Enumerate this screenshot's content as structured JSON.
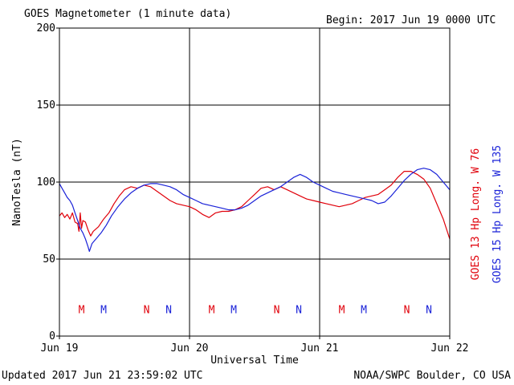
{
  "header": {
    "title": "GOES Magnetometer (1 minute data)",
    "begin": "Begin:  2017 Jun 19 0000 UTC"
  },
  "footer": {
    "updated": "Updated 2017 Jun 21 23:59:02 UTC",
    "credit": "NOAA/SWPC Boulder, CO USA"
  },
  "colors": {
    "goes13": "#e0000a",
    "goes15": "#1a22d8",
    "axis": "#000000"
  },
  "chart_data": {
    "type": "line",
    "title": "GOES Magnetometer (1 minute data)",
    "xlabel": "Universal Time",
    "ylabel": "NanoTesla (nT)",
    "xlim": [
      0,
      3
    ],
    "ylim": [
      0,
      200
    ],
    "x_ticks": [
      {
        "x": 0,
        "label": "Jun 19"
      },
      {
        "x": 1,
        "label": "Jun 20"
      },
      {
        "x": 2,
        "label": "Jun 21"
      },
      {
        "x": 3,
        "label": "Jun 22"
      }
    ],
    "y_ticks": [
      0,
      50,
      100,
      150,
      200
    ],
    "grid": true,
    "legend_placement": "right-vertical",
    "series": [
      {
        "name": "GOES 13 Hp  Long. W 76",
        "color": "#e0000a",
        "points": [
          [
            0.0,
            78
          ],
          [
            0.02,
            80
          ],
          [
            0.04,
            77
          ],
          [
            0.06,
            79
          ],
          [
            0.08,
            76
          ],
          [
            0.1,
            80
          ],
          [
            0.12,
            74
          ],
          [
            0.14,
            73
          ],
          [
            0.15,
            68
          ],
          [
            0.16,
            80
          ],
          [
            0.17,
            70
          ],
          [
            0.18,
            75
          ],
          [
            0.2,
            74
          ],
          [
            0.22,
            69
          ],
          [
            0.24,
            65
          ],
          [
            0.26,
            68
          ],
          [
            0.3,
            71
          ],
          [
            0.34,
            76
          ],
          [
            0.38,
            80
          ],
          [
            0.42,
            86
          ],
          [
            0.46,
            91
          ],
          [
            0.5,
            95
          ],
          [
            0.55,
            97
          ],
          [
            0.6,
            96
          ],
          [
            0.65,
            98
          ],
          [
            0.7,
            97
          ],
          [
            0.75,
            94
          ],
          [
            0.8,
            91
          ],
          [
            0.85,
            88
          ],
          [
            0.9,
            86
          ],
          [
            0.95,
            85
          ],
          [
            1.0,
            84
          ],
          [
            1.05,
            82
          ],
          [
            1.1,
            79
          ],
          [
            1.15,
            77
          ],
          [
            1.2,
            80
          ],
          [
            1.25,
            81
          ],
          [
            1.3,
            81
          ],
          [
            1.35,
            82
          ],
          [
            1.4,
            84
          ],
          [
            1.45,
            88
          ],
          [
            1.5,
            92
          ],
          [
            1.55,
            96
          ],
          [
            1.6,
            97
          ],
          [
            1.65,
            95
          ],
          [
            1.7,
            97
          ],
          [
            1.75,
            95
          ],
          [
            1.8,
            93
          ],
          [
            1.85,
            91
          ],
          [
            1.9,
            89
          ],
          [
            1.95,
            88
          ],
          [
            2.0,
            87
          ],
          [
            2.05,
            86
          ],
          [
            2.1,
            85
          ],
          [
            2.15,
            84
          ],
          [
            2.2,
            85
          ],
          [
            2.25,
            86
          ],
          [
            2.3,
            88
          ],
          [
            2.35,
            90
          ],
          [
            2.4,
            91
          ],
          [
            2.45,
            92
          ],
          [
            2.5,
            95
          ],
          [
            2.55,
            98
          ],
          [
            2.6,
            103
          ],
          [
            2.65,
            107
          ],
          [
            2.7,
            107
          ],
          [
            2.75,
            105
          ],
          [
            2.8,
            102
          ],
          [
            2.85,
            96
          ],
          [
            2.9,
            86
          ],
          [
            2.95,
            76
          ],
          [
            3.0,
            63
          ]
        ]
      },
      {
        "name": "GOES 15 Hp  Long. W 135",
        "color": "#1a22d8",
        "points": [
          [
            0.0,
            99
          ],
          [
            0.02,
            96
          ],
          [
            0.04,
            93
          ],
          [
            0.06,
            90
          ],
          [
            0.08,
            88
          ],
          [
            0.1,
            85
          ],
          [
            0.12,
            80
          ],
          [
            0.14,
            75
          ],
          [
            0.16,
            70
          ],
          [
            0.18,
            67
          ],
          [
            0.2,
            63
          ],
          [
            0.22,
            58
          ],
          [
            0.23,
            55
          ],
          [
            0.25,
            60
          ],
          [
            0.28,
            63
          ],
          [
            0.32,
            67
          ],
          [
            0.36,
            72
          ],
          [
            0.4,
            78
          ],
          [
            0.45,
            84
          ],
          [
            0.5,
            89
          ],
          [
            0.55,
            93
          ],
          [
            0.6,
            96
          ],
          [
            0.65,
            98
          ],
          [
            0.7,
            99
          ],
          [
            0.75,
            99
          ],
          [
            0.8,
            98
          ],
          [
            0.85,
            97
          ],
          [
            0.9,
            95
          ],
          [
            0.95,
            92
          ],
          [
            1.0,
            90
          ],
          [
            1.05,
            88
          ],
          [
            1.1,
            86
          ],
          [
            1.15,
            85
          ],
          [
            1.2,
            84
          ],
          [
            1.25,
            83
          ],
          [
            1.3,
            82
          ],
          [
            1.35,
            82
          ],
          [
            1.4,
            83
          ],
          [
            1.45,
            85
          ],
          [
            1.5,
            88
          ],
          [
            1.55,
            91
          ],
          [
            1.6,
            93
          ],
          [
            1.65,
            95
          ],
          [
            1.7,
            97
          ],
          [
            1.75,
            100
          ],
          [
            1.8,
            103
          ],
          [
            1.85,
            105
          ],
          [
            1.9,
            103
          ],
          [
            1.95,
            100
          ],
          [
            2.0,
            98
          ],
          [
            2.05,
            96
          ],
          [
            2.1,
            94
          ],
          [
            2.15,
            93
          ],
          [
            2.2,
            92
          ],
          [
            2.25,
            91
          ],
          [
            2.3,
            90
          ],
          [
            2.35,
            89
          ],
          [
            2.4,
            88
          ],
          [
            2.45,
            86
          ],
          [
            2.5,
            87
          ],
          [
            2.55,
            91
          ],
          [
            2.6,
            96
          ],
          [
            2.65,
            101
          ],
          [
            2.7,
            105
          ],
          [
            2.75,
            108
          ],
          [
            2.8,
            109
          ],
          [
            2.85,
            108
          ],
          [
            2.9,
            105
          ],
          [
            2.95,
            100
          ],
          [
            3.0,
            95
          ]
        ]
      }
    ],
    "annotations": [
      {
        "label": "M",
        "x": 0.17,
        "color": "#e0000a"
      },
      {
        "label": "M",
        "x": 0.34,
        "color": "#1a22d8"
      },
      {
        "label": "N",
        "x": 0.67,
        "color": "#e0000a"
      },
      {
        "label": "N",
        "x": 0.84,
        "color": "#1a22d8"
      },
      {
        "label": "M",
        "x": 1.17,
        "color": "#e0000a"
      },
      {
        "label": "M",
        "x": 1.34,
        "color": "#1a22d8"
      },
      {
        "label": "N",
        "x": 1.67,
        "color": "#e0000a"
      },
      {
        "label": "N",
        "x": 1.84,
        "color": "#1a22d8"
      },
      {
        "label": "M",
        "x": 2.17,
        "color": "#e0000a"
      },
      {
        "label": "M",
        "x": 2.34,
        "color": "#1a22d8"
      },
      {
        "label": "N",
        "x": 2.67,
        "color": "#e0000a"
      },
      {
        "label": "N",
        "x": 2.84,
        "color": "#1a22d8"
      }
    ],
    "annotation_y": 17
  }
}
